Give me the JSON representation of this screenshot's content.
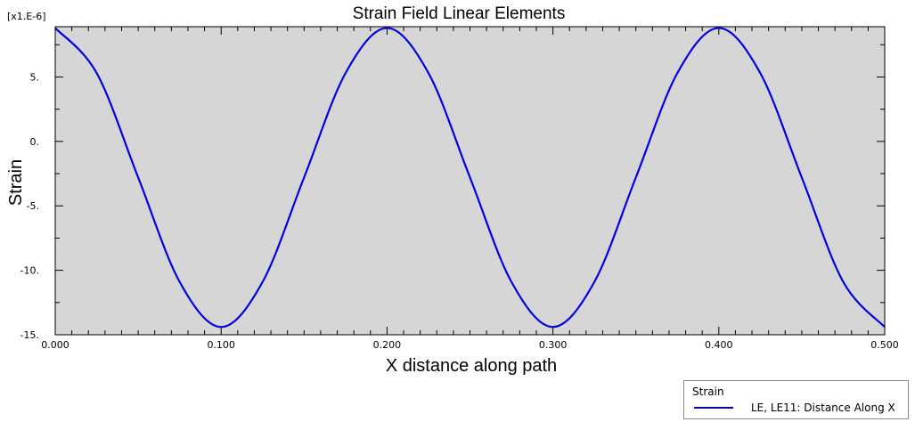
{
  "chart_data": {
    "type": "line",
    "title": "Strain Field Linear Elements",
    "xlabel": "X distance along path",
    "ylabel": "Strain",
    "y_multiplier": "[x1.E-6]",
    "xlim": [
      0.0,
      0.5
    ],
    "ylim": [
      -15,
      8.9
    ],
    "x_ticks": [
      0.0,
      0.1,
      0.2,
      0.3,
      0.4,
      0.5
    ],
    "x_tick_labels": [
      "0.000",
      "0.100",
      "0.200",
      "0.300",
      "0.400",
      "0.500"
    ],
    "y_ticks": [
      5,
      0,
      -5,
      -10,
      -15
    ],
    "y_tick_labels": [
      "5.",
      "0.",
      "-5.",
      "-10.",
      "-15."
    ],
    "grid": false,
    "plot_background": "#d6d6d6",
    "legend_position": "bottom-right",
    "legend_title": "Strain",
    "series": [
      {
        "name": "LE, LE11: Distance Along X",
        "color": "#0000e0",
        "x": [
          0.0,
          0.025,
          0.05,
          0.075,
          0.1,
          0.125,
          0.15,
          0.175,
          0.2,
          0.225,
          0.25,
          0.275,
          0.3,
          0.325,
          0.35,
          0.375,
          0.4,
          0.425,
          0.45,
          0.475,
          0.5
        ],
        "y": [
          8.8,
          5.3,
          -2.8,
          -10.9,
          -14.4,
          -10.9,
          -2.8,
          5.3,
          8.8,
          5.3,
          -2.8,
          -10.9,
          -14.4,
          -10.9,
          -2.8,
          5.3,
          8.8,
          5.3,
          -2.8,
          -10.9,
          -14.4
        ]
      }
    ]
  }
}
